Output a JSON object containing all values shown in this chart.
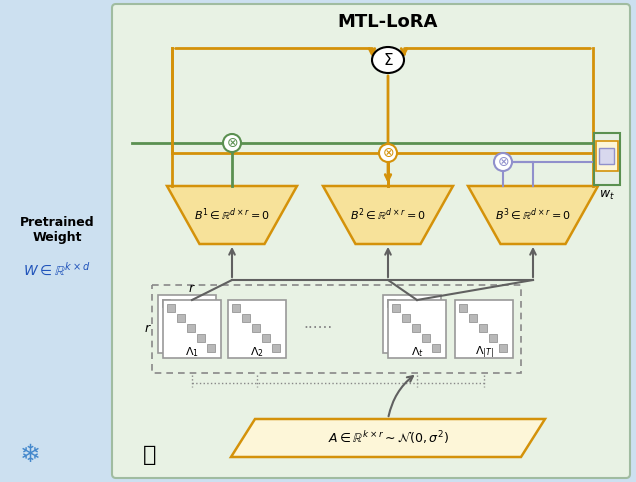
{
  "title": "MTL-LoRA",
  "bg_left": "#cce0f0",
  "bg_right": "#e8f2e4",
  "orange": "#d4920a",
  "green": "#5a9050",
  "purple": "#9090cc",
  "dark_gray": "#606060",
  "box_fill": "#f7e29a",
  "box_fill_light": "#fdf6d8",
  "text_blue": "#2255bb",
  "B1_text": "$B^1 \\in \\mathbb{R}^{d\\times r}=0$",
  "B2_text": "$B^2 \\in \\mathbb{R}^{d\\times r}=0$",
  "B3_text": "$B^3 \\in \\mathbb{R}^{d\\times r}=0$",
  "A_text": "$A \\in \\mathbb{R}^{k\\times r}\\sim\\mathcal{N}(0,\\sigma^2)$",
  "lambda1_text": "$\\Lambda_1$",
  "lambda2_text": "$\\Lambda_2$",
  "lambdat_text": "$\\Lambda_t$",
  "lambdaT_text": "$\\Lambda_{|T|}$",
  "pretrained_text": "Pretrained\nWeight",
  "W_text": "$W\\in\\mathbb{R}^{k\\times d}$",
  "wt_text": "$w_t$",
  "r_label_top": "$r$",
  "r_label_left": "$r$"
}
